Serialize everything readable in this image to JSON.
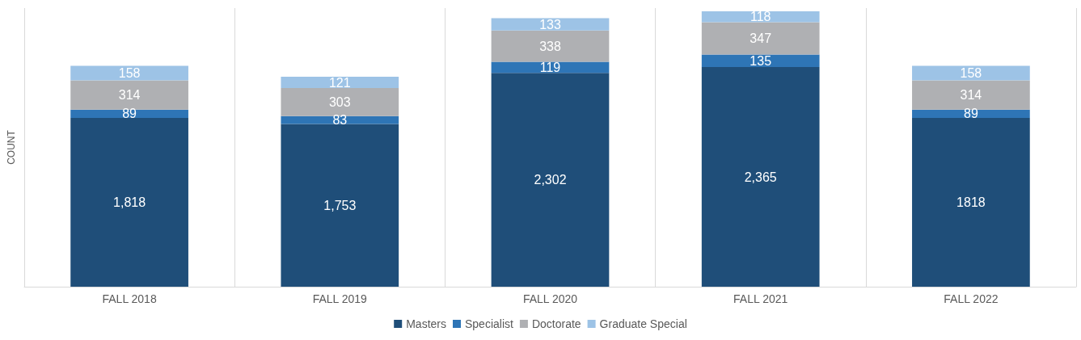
{
  "chart_data": {
    "type": "bar",
    "stacked": true,
    "ylabel": "COUNT",
    "categories": [
      "FALL 2018",
      "FALL 2019",
      "FALL 2020",
      "FALL 2021",
      "FALL 2022"
    ],
    "series": [
      {
        "name": "Masters",
        "color": "#1f4e79",
        "values": [
          1818,
          1753,
          2302,
          2365,
          1818
        ],
        "value_labels": [
          "1,818",
          "1,753",
          "2,302",
          "2,365",
          "1818"
        ]
      },
      {
        "name": "Specialist",
        "color": "#2e75b6",
        "values": [
          89,
          83,
          119,
          135,
          89
        ],
        "value_labels": [
          "89",
          "83",
          "119",
          "135",
          "89"
        ]
      },
      {
        "name": "Doctorate",
        "color": "#afb0b3",
        "values": [
          314,
          303,
          338,
          347,
          314
        ],
        "value_labels": [
          "314",
          "303",
          "338",
          "347",
          "314"
        ]
      },
      {
        "name": "Graduate Special",
        "color": "#9dc3e6",
        "values": [
          158,
          121,
          133,
          118,
          158
        ],
        "value_labels": [
          "158",
          "121",
          "133",
          "118",
          "158"
        ]
      }
    ],
    "grid": "x",
    "legend": "bottom",
    "tick_labels": "x"
  }
}
